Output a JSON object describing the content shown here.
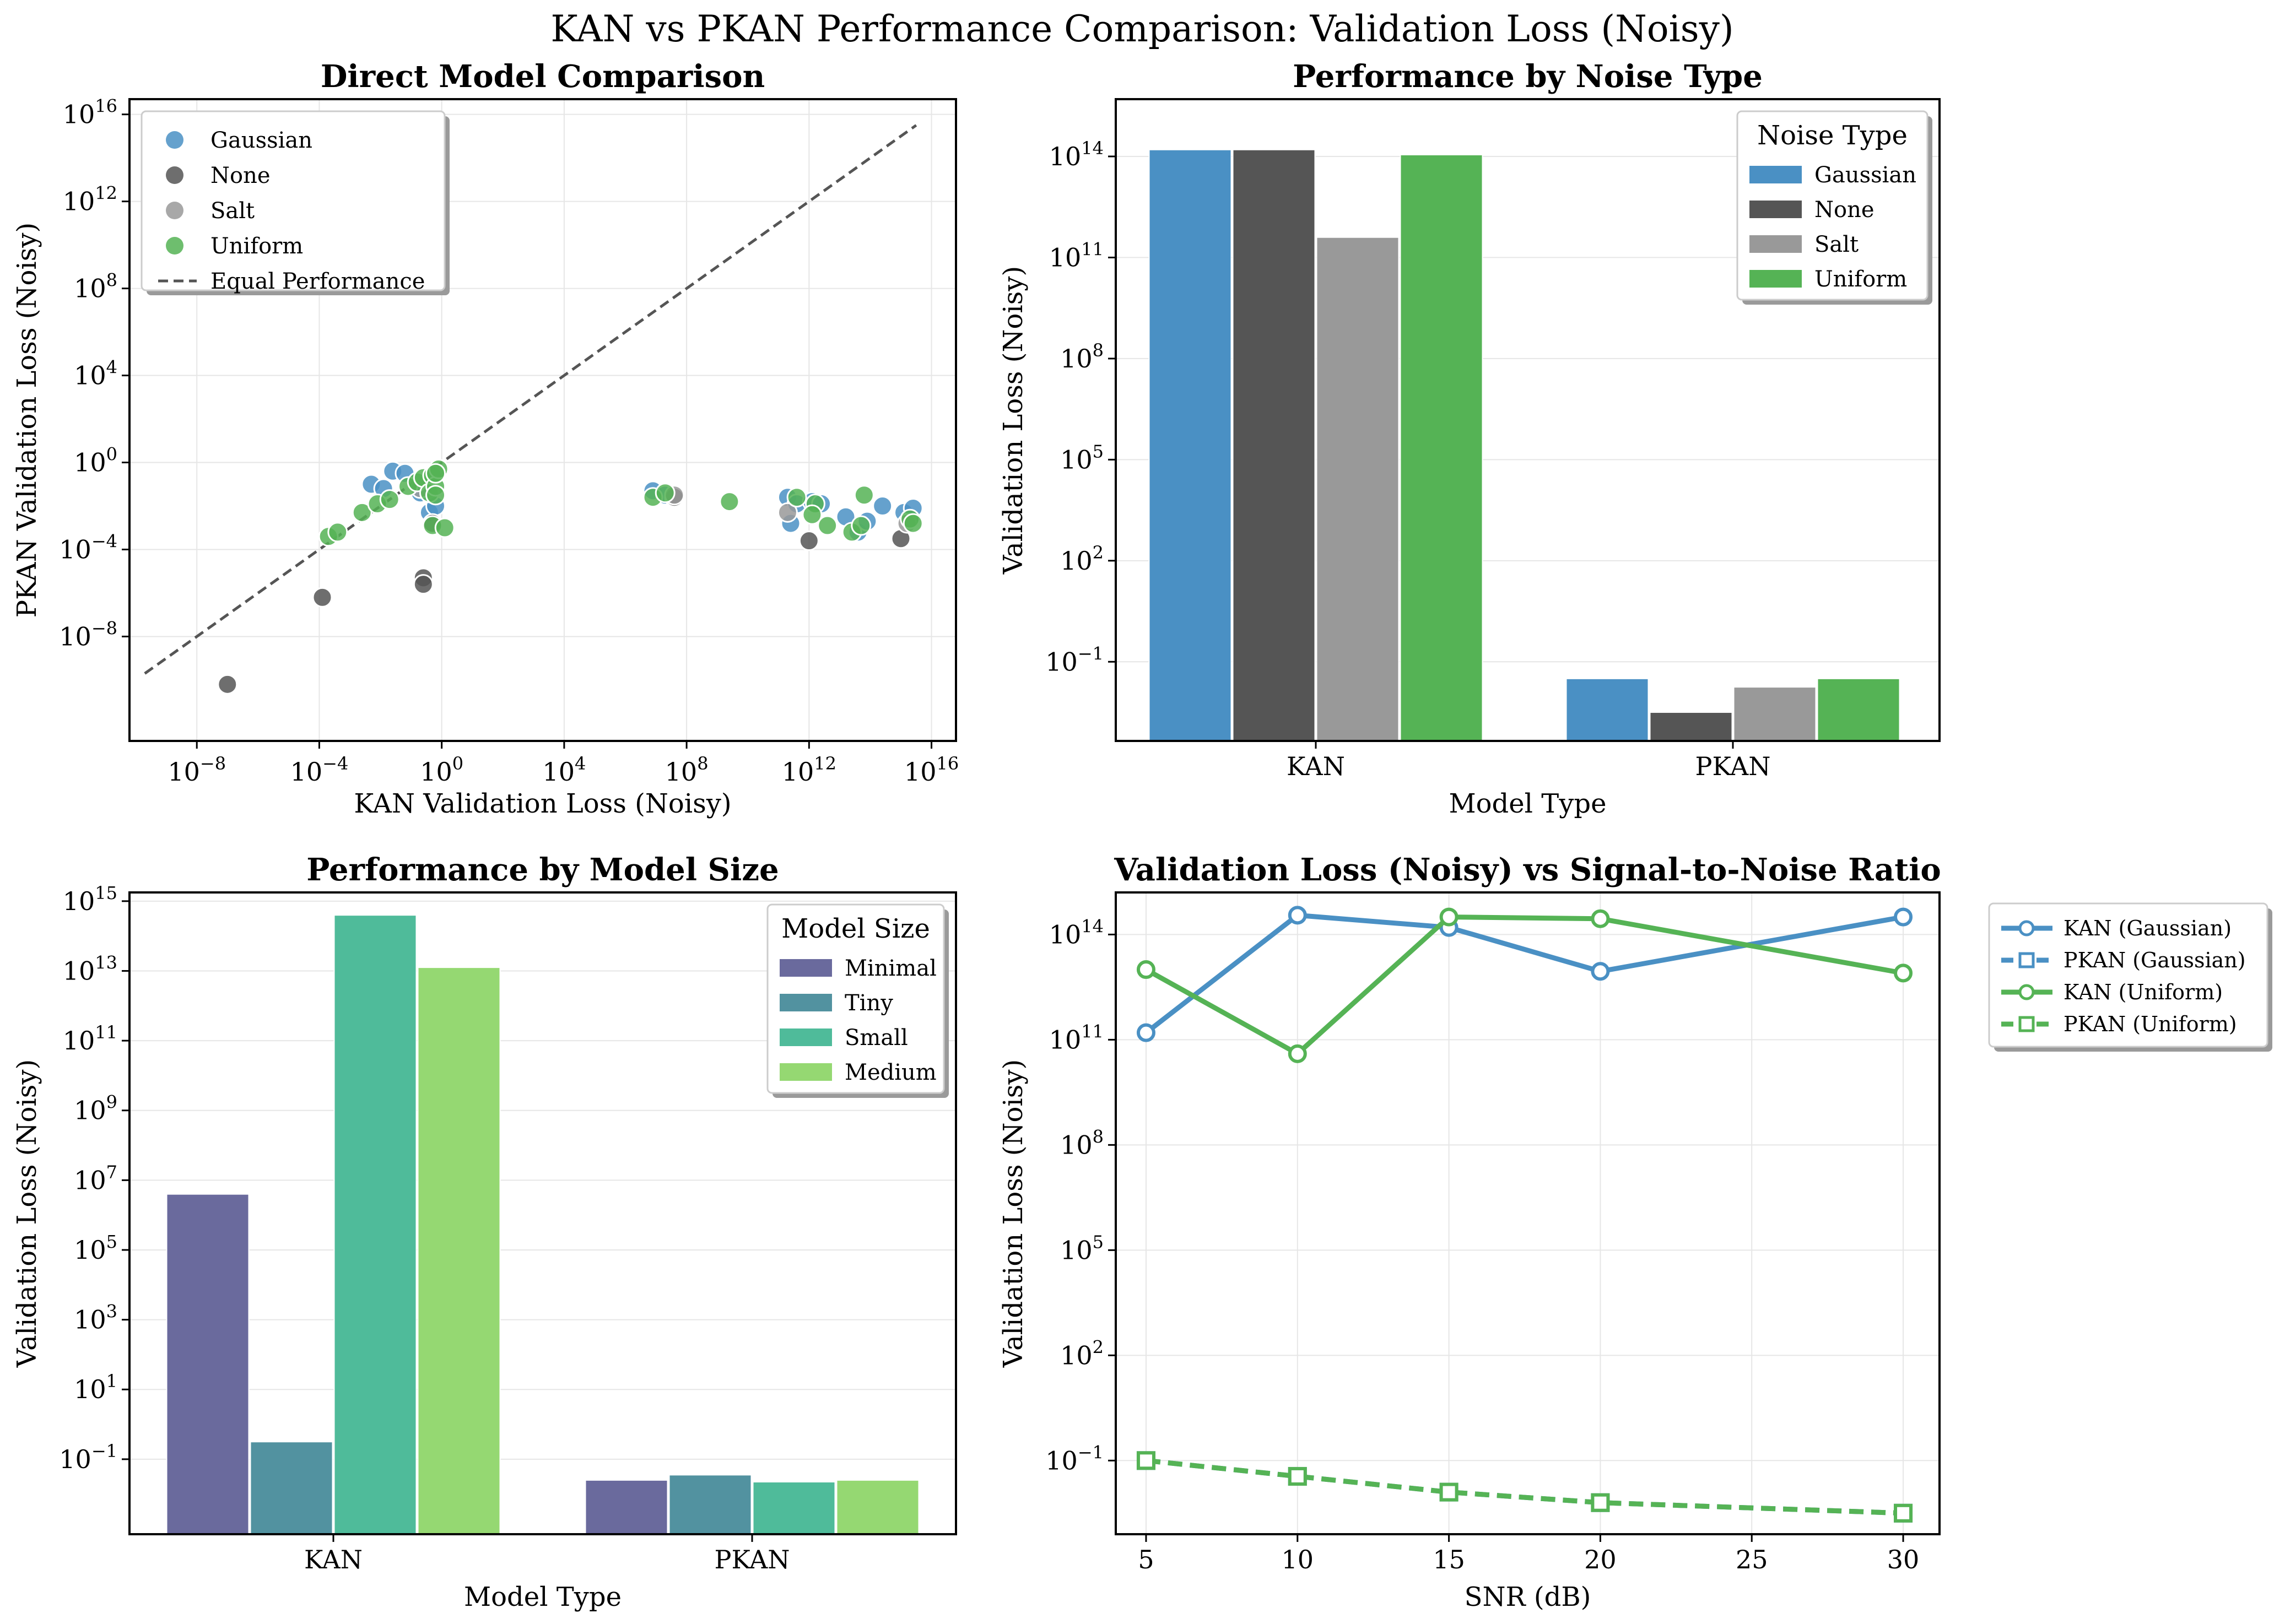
{
  "title": "KAN vs PKAN Performance Comparison: Validation Loss (Noisy)",
  "colors": {
    "Gaussian": "#4a90c4",
    "None": "#555555",
    "Salt": "#999999",
    "Uniform": "#55b355",
    "Minimal": "#6a6a9d",
    "Tiny": "#5292a0",
    "Small": "#4fbb9a",
    "Medium": "#95d872",
    "diagonal": "#555555"
  },
  "chart_data": [
    {
      "id": "scatter",
      "type": "scatter",
      "title": "Direct Model Comparison",
      "xlabel": "KAN Validation Loss (Noisy)",
      "ylabel": "PKAN Validation Loss (Noisy)",
      "log_x": true,
      "log_y": true,
      "xlim_exp": [
        -10.2,
        16.8
      ],
      "ylim_exp": [
        -12.8,
        16.7
      ],
      "xticks_exp": [
        -8,
        -4,
        0,
        4,
        8,
        12,
        16
      ],
      "yticks_exp": [
        -8,
        -4,
        0,
        4,
        8,
        12,
        16
      ],
      "grid": true,
      "legend_position": "upper-left",
      "legend": [
        "Gaussian",
        "None",
        "Salt",
        "Uniform",
        "Equal Performance"
      ],
      "diagonal": {
        "name": "Equal Performance",
        "from_exp": -9.7,
        "to_exp": 15.5
      },
      "series": [
        {
          "name": "Gaussian",
          "points": [
            [
              -2.3,
              -1.0
            ],
            [
              -1.9,
              -1.2
            ],
            [
              -1.6,
              -0.4
            ],
            [
              -1.2,
              -0.5
            ],
            [
              -0.5,
              -1.0
            ],
            [
              -0.7,
              -1.4
            ],
            [
              -0.4,
              -2.3
            ],
            [
              -0.2,
              -2.0
            ],
            [
              6.9,
              -1.3
            ],
            [
              7.3,
              -1.5
            ],
            [
              11.3,
              -1.6
            ],
            [
              11.6,
              -1.9
            ],
            [
              11.4,
              -2.8
            ],
            [
              12.1,
              -1.8
            ],
            [
              12.4,
              -1.9
            ],
            [
              13.2,
              -2.5
            ],
            [
              13.6,
              -3.2
            ],
            [
              13.9,
              -2.7
            ],
            [
              14.4,
              -2.0
            ],
            [
              15.1,
              -2.3
            ],
            [
              15.3,
              -2.6
            ],
            [
              15.4,
              -2.1
            ]
          ]
        },
        {
          "name": "None",
          "points": [
            [
              -7.0,
              -10.2
            ],
            [
              -3.9,
              -6.2
            ],
            [
              -0.6,
              -5.3
            ],
            [
              -0.6,
              -5.6
            ],
            [
              -0.3,
              -2.8
            ],
            [
              7.6,
              -1.6
            ],
            [
              12.0,
              -3.6
            ],
            [
              15.0,
              -3.5
            ]
          ]
        },
        {
          "name": "Salt",
          "points": [
            [
              -0.7,
              -1.2
            ],
            [
              7.6,
              -1.5
            ],
            [
              11.3,
              -2.3
            ],
            [
              15.2,
              -2.8
            ]
          ]
        },
        {
          "name": "Uniform",
          "points": [
            [
              -3.7,
              -3.4
            ],
            [
              -3.4,
              -3.2
            ],
            [
              -2.6,
              -2.3
            ],
            [
              -2.1,
              -1.9
            ],
            [
              -1.7,
              -1.7
            ],
            [
              -1.1,
              -1.1
            ],
            [
              -0.8,
              -0.9
            ],
            [
              -0.6,
              -0.7
            ],
            [
              -0.3,
              -0.6
            ],
            [
              -0.4,
              -1.4
            ],
            [
              -0.2,
              -1.1
            ],
            [
              -0.1,
              -0.3
            ],
            [
              -0.2,
              -0.5
            ],
            [
              -0.2,
              -1.5
            ],
            [
              -0.3,
              -2.9
            ],
            [
              0.1,
              -3.0
            ],
            [
              6.9,
              -1.6
            ],
            [
              7.3,
              -1.4
            ],
            [
              9.4,
              -1.8
            ],
            [
              11.6,
              -1.6
            ],
            [
              12.2,
              -1.9
            ],
            [
              12.1,
              -2.4
            ],
            [
              12.6,
              -2.9
            ],
            [
              13.4,
              -3.2
            ],
            [
              13.7,
              -2.9
            ],
            [
              13.8,
              -1.5
            ],
            [
              15.3,
              -2.6
            ],
            [
              15.4,
              -2.8
            ]
          ]
        }
      ]
    },
    {
      "id": "noise",
      "type": "bar",
      "title": "Performance by Noise Type",
      "xlabel": "Model Type",
      "ylabel": "Validation Loss (Noisy)",
      "log_y": true,
      "ylim_exp": [
        -3.35,
        15.7
      ],
      "yticks_exp": [
        -1,
        2,
        5,
        8,
        11,
        14
      ],
      "categories": [
        "KAN",
        "PKAN"
      ],
      "legend_title": "Noise Type",
      "legend_position": "upper-right",
      "series": [
        {
          "name": "Gaussian",
          "values_exp": [
            14.2,
            -1.5
          ]
        },
        {
          "name": "None",
          "values_exp": [
            14.2,
            -2.5
          ]
        },
        {
          "name": "Salt",
          "values_exp": [
            11.6,
            -1.75
          ]
        },
        {
          "name": "Uniform",
          "values_exp": [
            14.05,
            -1.5
          ]
        }
      ]
    },
    {
      "id": "size",
      "type": "bar",
      "title": "Performance by Model Size",
      "xlabel": "Model Type",
      "ylabel": "Validation Loss (Noisy)",
      "log_y": true,
      "ylim_exp": [
        -3.15,
        15.25
      ],
      "yticks_exp": [
        -1,
        1,
        3,
        5,
        7,
        9,
        11,
        13,
        15
      ],
      "categories": [
        "KAN",
        "PKAN"
      ],
      "legend_title": "Model Size",
      "legend_position": "upper-right",
      "series": [
        {
          "name": "Minimal",
          "values_exp": [
            6.6,
            -1.6
          ]
        },
        {
          "name": "Tiny",
          "values_exp": [
            -0.5,
            -1.45
          ]
        },
        {
          "name": "Small",
          "values_exp": [
            14.6,
            -1.65
          ]
        },
        {
          "name": "Medium",
          "values_exp": [
            13.1,
            -1.6
          ]
        }
      ]
    },
    {
      "id": "snr",
      "type": "line",
      "title": "Validation Loss (Noisy) vs Signal-to-Noise Ratio",
      "xlabel": "SNR (dB)",
      "ylabel": "Validation Loss (Noisy)",
      "log_y": true,
      "xlim": [
        4.0,
        31.2
      ],
      "ylim_exp": [
        -3.1,
        15.2
      ],
      "xticks": [
        5,
        10,
        15,
        20,
        25,
        30
      ],
      "yticks_exp": [
        -1,
        2,
        5,
        8,
        11,
        14
      ],
      "x": [
        5,
        10,
        15,
        20,
        25,
        30
      ],
      "legend_position": "outside-right",
      "series": [
        {
          "name": "KAN (Gaussian)",
          "color": "#4a90c4",
          "marker": "circle",
          "dashed": false,
          "x": [
            5,
            10,
            15,
            30
          ],
          "values_exp": [
            11.2,
            14.55,
            14.2,
            14.5
          ],
          "extra_x": [
            20
          ],
          "extra_values_exp": [
            12.95
          ]
        },
        {
          "name": "PKAN (Gaussian)",
          "color": "#4a90c4",
          "marker": "square",
          "dashed": true,
          "x": [
            5,
            10,
            15,
            20,
            30
          ],
          "values_exp": [
            -1.0,
            -1.45,
            -1.9,
            -2.2,
            -2.5
          ]
        },
        {
          "name": "KAN (Uniform)",
          "color": "#55b355",
          "marker": "circle",
          "dashed": false,
          "x": [
            5,
            10,
            15,
            20,
            30
          ],
          "values_exp": [
            13.0,
            10.6,
            14.5,
            14.45,
            12.9
          ]
        },
        {
          "name": "PKAN (Uniform)",
          "color": "#55b355",
          "marker": "square",
          "dashed": true,
          "x": [
            5,
            10,
            15,
            20,
            30
          ],
          "values_exp": [
            -1.0,
            -1.45,
            -1.9,
            -2.2,
            -2.5
          ]
        }
      ]
    }
  ]
}
